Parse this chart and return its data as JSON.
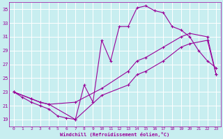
{
  "xlabel": "Windchill (Refroidissement éolien,°C)",
  "bg_color": "#c8eef0",
  "line_color": "#990099",
  "grid_color": "#aadddd",
  "xlim": [
    -0.5,
    23.5
  ],
  "ylim": [
    18,
    36
  ],
  "yticks": [
    19,
    21,
    23,
    25,
    27,
    29,
    31,
    33,
    35
  ],
  "xticks": [
    0,
    1,
    2,
    3,
    4,
    5,
    6,
    7,
    8,
    9,
    10,
    11,
    12,
    13,
    14,
    15,
    16,
    17,
    18,
    19,
    20,
    21,
    22,
    23
  ],
  "line1_x": [
    0,
    1,
    2,
    3,
    4,
    5,
    6,
    7,
    8,
    9,
    10,
    11,
    12,
    13,
    14,
    15,
    16,
    17,
    18,
    19,
    20,
    21,
    22,
    23
  ],
  "line1_y": [
    23.0,
    22.2,
    21.5,
    21.0,
    20.5,
    19.5,
    19.2,
    19.0,
    24.0,
    21.5,
    30.5,
    27.5,
    32.5,
    32.5,
    35.2,
    35.5,
    34.8,
    34.5,
    32.5,
    32.0,
    31.0,
    29.0,
    27.5,
    26.5
  ],
  "line2_x": [
    0,
    2,
    3,
    4,
    7,
    10,
    13,
    14,
    15,
    17,
    19,
    20,
    22,
    23
  ],
  "line2_y": [
    23.0,
    22.0,
    21.5,
    21.2,
    21.5,
    23.5,
    26.0,
    27.5,
    28.0,
    29.5,
    31.0,
    31.5,
    31.0,
    25.5
  ],
  "line3_x": [
    0,
    2,
    3,
    4,
    7,
    10,
    13,
    14,
    15,
    17,
    19,
    20,
    22,
    23
  ],
  "line3_y": [
    23.0,
    22.0,
    21.5,
    21.2,
    19.0,
    22.5,
    24.0,
    25.5,
    26.0,
    27.5,
    29.5,
    30.0,
    30.5,
    25.5
  ]
}
